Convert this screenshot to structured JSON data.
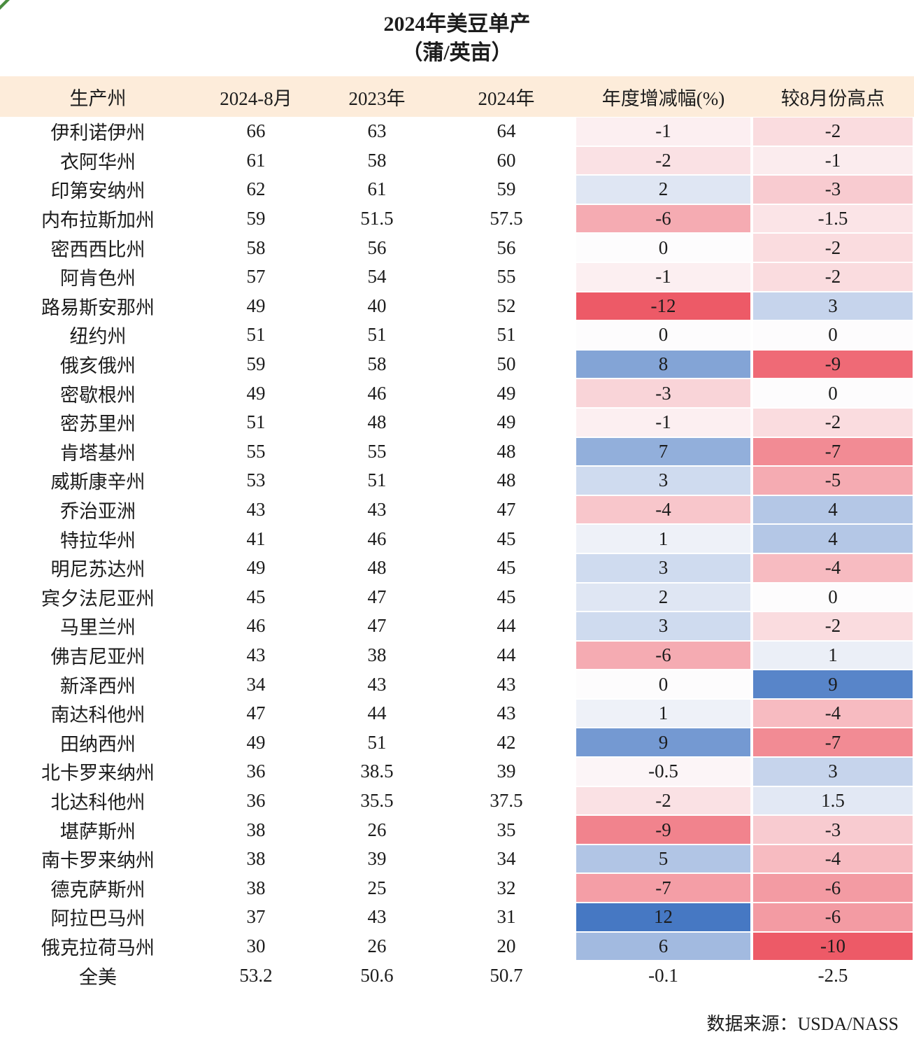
{
  "title": {
    "line1": "2024年美豆单产",
    "line2": "（蒲/英亩）"
  },
  "chart_data": {
    "type": "table",
    "title": "2024年美豆单产（蒲/英亩）",
    "columns": [
      "生产州",
      "2024-8月",
      "2023年",
      "2024年",
      "年度增减幅(%)",
      "较8月份高点"
    ],
    "heatmap_columns": [
      "年度增减幅(%)",
      "较8月份高点"
    ],
    "rows": [
      {
        "state": "伊利诺伊州",
        "m2024_8": 66,
        "y2023": 63,
        "y2024": 64,
        "yoy": -1,
        "vs_high": -2
      },
      {
        "state": "衣阿华州",
        "m2024_8": 61,
        "y2023": 58,
        "y2024": 60,
        "yoy": -2,
        "vs_high": -1
      },
      {
        "state": "印第安纳州",
        "m2024_8": 62,
        "y2023": 61,
        "y2024": 59,
        "yoy": 2,
        "vs_high": -3
      },
      {
        "state": "内布拉斯加州",
        "m2024_8": 59,
        "y2023": 51.5,
        "y2024": 57.5,
        "yoy": -6,
        "vs_high": -1.5
      },
      {
        "state": "密西西比州",
        "m2024_8": 58,
        "y2023": 56,
        "y2024": 56,
        "yoy": 0,
        "vs_high": -2
      },
      {
        "state": "阿肯色州",
        "m2024_8": 57,
        "y2023": 54,
        "y2024": 55,
        "yoy": -1,
        "vs_high": -2
      },
      {
        "state": "路易斯安那州",
        "m2024_8": 49,
        "y2023": 40,
        "y2024": 52,
        "yoy": -12,
        "vs_high": 3
      },
      {
        "state": "纽约州",
        "m2024_8": 51,
        "y2023": 51,
        "y2024": 51,
        "yoy": 0,
        "vs_high": 0
      },
      {
        "state": "俄亥俄州",
        "m2024_8": 59,
        "y2023": 58,
        "y2024": 50,
        "yoy": 8,
        "vs_high": -9
      },
      {
        "state": "密歇根州",
        "m2024_8": 49,
        "y2023": 46,
        "y2024": 49,
        "yoy": -3,
        "vs_high": 0
      },
      {
        "state": "密苏里州",
        "m2024_8": 51,
        "y2023": 48,
        "y2024": 49,
        "yoy": -1,
        "vs_high": -2
      },
      {
        "state": "肯塔基州",
        "m2024_8": 55,
        "y2023": 55,
        "y2024": 48,
        "yoy": 7,
        "vs_high": -7
      },
      {
        "state": "威斯康辛州",
        "m2024_8": 53,
        "y2023": 51,
        "y2024": 48,
        "yoy": 3,
        "vs_high": -5
      },
      {
        "state": "乔治亚洲",
        "m2024_8": 43,
        "y2023": 43,
        "y2024": 47,
        "yoy": -4,
        "vs_high": 4
      },
      {
        "state": "特拉华州",
        "m2024_8": 41,
        "y2023": 46,
        "y2024": 45,
        "yoy": 1,
        "vs_high": 4
      },
      {
        "state": "明尼苏达州",
        "m2024_8": 49,
        "y2023": 48,
        "y2024": 45,
        "yoy": 3,
        "vs_high": -4
      },
      {
        "state": "宾夕法尼亚州",
        "m2024_8": 45,
        "y2023": 47,
        "y2024": 45,
        "yoy": 2,
        "vs_high": 0
      },
      {
        "state": "马里兰州",
        "m2024_8": 46,
        "y2023": 47,
        "y2024": 44,
        "yoy": 3,
        "vs_high": -2
      },
      {
        "state": "佛吉尼亚州",
        "m2024_8": 43,
        "y2023": 38,
        "y2024": 44,
        "yoy": -6,
        "vs_high": 1
      },
      {
        "state": "新泽西州",
        "m2024_8": 34,
        "y2023": 43,
        "y2024": 43,
        "yoy": 0,
        "vs_high": 9
      },
      {
        "state": "南达科他州",
        "m2024_8": 47,
        "y2023": 44,
        "y2024": 43,
        "yoy": 1,
        "vs_high": -4
      },
      {
        "state": "田纳西州",
        "m2024_8": 49,
        "y2023": 51,
        "y2024": 42,
        "yoy": 9,
        "vs_high": -7
      },
      {
        "state": "北卡罗来纳州",
        "m2024_8": 36,
        "y2023": 38.5,
        "y2024": 39,
        "yoy": -0.5,
        "vs_high": 3
      },
      {
        "state": "北达科他州",
        "m2024_8": 36,
        "y2023": 35.5,
        "y2024": 37.5,
        "yoy": -2,
        "vs_high": 1.5
      },
      {
        "state": "堪萨斯州",
        "m2024_8": 38,
        "y2023": 26,
        "y2024": 35,
        "yoy": -9,
        "vs_high": -3
      },
      {
        "state": "南卡罗来纳州",
        "m2024_8": 38,
        "y2023": 39,
        "y2024": 34,
        "yoy": 5,
        "vs_high": -4
      },
      {
        "state": "德克萨斯州",
        "m2024_8": 38,
        "y2023": 25,
        "y2024": 32,
        "yoy": -7,
        "vs_high": -6
      },
      {
        "state": "阿拉巴马州",
        "m2024_8": 37,
        "y2023": 43,
        "y2024": 31,
        "yoy": 12,
        "vs_high": -6
      },
      {
        "state": "俄克拉荷马州",
        "m2024_8": 30,
        "y2023": 26,
        "y2024": 20,
        "yoy": 6,
        "vs_high": -10
      },
      {
        "state": "全美",
        "m2024_8": 53.2,
        "y2023": 50.6,
        "y2024": 50.7,
        "yoy": -0.1,
        "vs_high": -2.5,
        "total": true
      }
    ],
    "colors": {
      "header_bg": "#fdecda",
      "heat_red": "#ed5a67",
      "heat_blue": "#4678c3",
      "heat_neutral": "#fdfcfd",
      "corner_green": "#4a8c3f"
    }
  },
  "footer": {
    "source": "数据来源：USDA/NASS"
  }
}
